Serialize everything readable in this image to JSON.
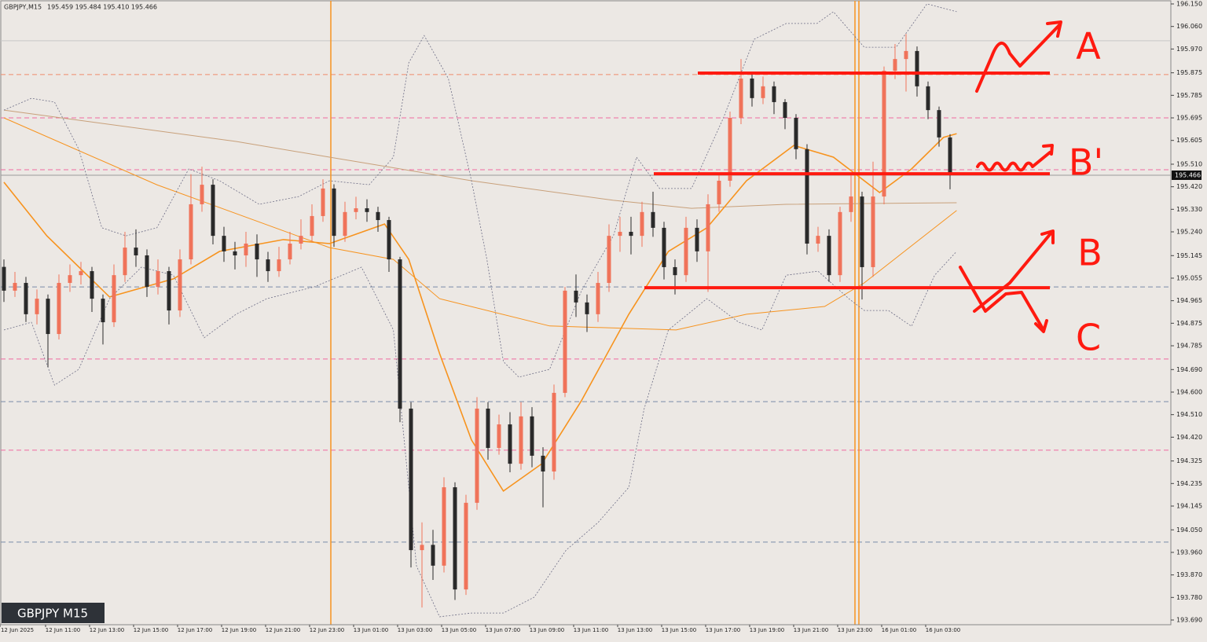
{
  "chart_data": {
    "type": "candlestick",
    "symbol": "GBPJPY,M15",
    "info": "195.459 195.484 195.410 195.466",
    "box_label": "GBPJPY M15",
    "current_price": 195.466,
    "bull_color": "#f0735a",
    "bear_color": "#2a2a2a",
    "x_labels": [
      "12 Jun 2025",
      "12 Jun 11:00",
      "12 Jun 13:00",
      "12 Jun 15:00",
      "12 Jun 17:00",
      "12 Jun 19:00",
      "12 Jun 21:00",
      "12 Jun 23:00",
      "13 Jun 01:00",
      "13 Jun 03:00",
      "13 Jun 05:00",
      "13 Jun 07:00",
      "13 Jun 09:00",
      "13 Jun 11:00",
      "13 Jun 13:00",
      "13 Jun 15:00",
      "13 Jun 17:00",
      "13 Jun 19:00",
      "13 Jun 21:00",
      "13 Jun 23:00",
      "16 Jun 01:00",
      "16 Jun 03:00"
    ],
    "ylim": [
      193.69,
      196.15
    ],
    "yticks": [
      {
        "value": 196.15,
        "label": "196.150"
      },
      {
        "value": 196.06,
        "label": "196.060"
      },
      {
        "value": 195.97,
        "label": "195.970"
      },
      195.875,
      195.785,
      195.695,
      195.605,
      {
        "value": 195.51,
        "label": "195.510"
      },
      {
        "value": 195.42,
        "label": "195.420"
      },
      {
        "value": 195.33,
        "label": "195.330"
      },
      {
        "value": 195.24,
        "label": "195.240"
      },
      195.145,
      195.055,
      194.965,
      194.875,
      194.785,
      {
        "value": 194.69,
        "label": "194.690"
      },
      {
        "value": 194.6,
        "label": "194.600"
      },
      {
        "value": 194.51,
        "label": "194.510"
      },
      {
        "value": 194.42,
        "label": "194.420"
      },
      194.325,
      194.235,
      194.145,
      {
        "value": 194.05,
        "label": "194.050"
      },
      {
        "value": 193.96,
        "label": "193.960"
      },
      {
        "value": 193.87,
        "label": "193.870"
      },
      {
        "value": 193.78,
        "label": "193.780"
      },
      {
        "value": 193.69,
        "label": "193.690"
      }
    ],
    "open": [
      195.1,
      195.005,
      195.036,
      194.911,
      194.973,
      194.832,
      195.036,
      195.067,
      195.083,
      194.973,
      194.879,
      195.067,
      195.177,
      195.146,
      195.02,
      195.083,
      194.926,
      195.13,
      195.35,
      195.428,
      195.224,
      195.162,
      195.146,
      195.193,
      195.13,
      195.083,
      195.13,
      195.193,
      195.224,
      195.303,
      195.413,
      195.224,
      195.319,
      195.334,
      195.319,
      195.287,
      195.13,
      194.534,
      193.969,
      193.99,
      193.907,
      194.22,
      193.812,
      194.158,
      194.534,
      194.377,
      194.471,
      194.314,
      194.503,
      194.346,
      194.283,
      194.597,
      195.005,
      194.958,
      194.911,
      195.036,
      195.224,
      195.24,
      195.224,
      195.319,
      195.256,
      195.099,
      195.067,
      195.256,
      195.162,
      195.35,
      195.444,
      195.695,
      195.852,
      195.774,
      195.821,
      195.758,
      195.695,
      195.57,
      195.193,
      195.224,
      195.067,
      195.319,
      195.381,
      195.099,
      195.381,
      195.883,
      195.93,
      195.962,
      195.821,
      195.726,
      195.617
    ],
    "high": [
      195.13,
      195.08,
      195.06,
      195.01,
      194.99,
      195.07,
      195.11,
      195.12,
      195.1,
      194.99,
      195.11,
      195.24,
      195.25,
      195.17,
      195.13,
      195.1,
      195.17,
      195.47,
      195.5,
      195.45,
      195.26,
      195.2,
      195.24,
      195.23,
      195.16,
      195.18,
      195.24,
      195.29,
      195.35,
      195.45,
      195.43,
      195.36,
      195.38,
      195.37,
      195.34,
      195.3,
      195.14,
      194.56,
      194.08,
      194.05,
      194.26,
      194.24,
      194.19,
      194.58,
      194.56,
      194.51,
      194.52,
      194.56,
      194.54,
      194.38,
      194.63,
      195.02,
      195.07,
      194.99,
      195.08,
      195.27,
      195.3,
      195.3,
      195.36,
      195.4,
      195.28,
      195.13,
      195.3,
      195.29,
      195.39,
      195.47,
      195.72,
      195.93,
      195.88,
      195.86,
      195.84,
      195.77,
      195.71,
      195.59,
      195.26,
      195.25,
      195.34,
      195.47,
      195.4,
      195.52,
      195.9,
      195.99,
      196.03,
      195.98,
      195.84,
      195.74,
      195.63
    ],
    "low": [
      194.96,
      194.98,
      194.88,
      194.87,
      194.7,
      194.81,
      195.0,
      195.03,
      194.92,
      194.79,
      194.86,
      195.04,
      195.1,
      194.98,
      194.99,
      194.87,
      194.9,
      195.11,
      195.32,
      195.19,
      195.12,
      195.09,
      195.1,
      195.06,
      195.04,
      195.06,
      195.11,
      195.17,
      195.2,
      195.28,
      195.18,
      195.2,
      195.29,
      195.28,
      195.24,
      195.08,
      194.48,
      193.9,
      193.74,
      193.85,
      193.88,
      193.77,
      193.79,
      194.13,
      194.33,
      194.35,
      194.28,
      194.29,
      194.3,
      194.14,
      194.25,
      194.58,
      194.9,
      194.84,
      194.88,
      195.0,
      195.16,
      195.15,
      195.18,
      195.22,
      195.05,
      194.99,
      195.04,
      195.12,
      195.0,
      195.32,
      195.42,
      195.67,
      195.74,
      195.75,
      195.71,
      195.65,
      195.53,
      195.15,
      195.16,
      195.04,
      195.04,
      195.28,
      194.97,
      195.06,
      195.35,
      195.85,
      195.8,
      195.78,
      195.69,
      195.58,
      195.41
    ],
    "close": [
      195.005,
      195.036,
      194.911,
      194.973,
      194.832,
      195.036,
      195.067,
      195.083,
      194.973,
      194.879,
      195.067,
      195.177,
      195.146,
      195.02,
      195.083,
      194.926,
      195.13,
      195.35,
      195.428,
      195.224,
      195.162,
      195.146,
      195.193,
      195.13,
      195.083,
      195.13,
      195.193,
      195.224,
      195.303,
      195.413,
      195.224,
      195.319,
      195.334,
      195.319,
      195.287,
      195.13,
      194.534,
      193.969,
      193.99,
      193.907,
      194.22,
      193.812,
      194.158,
      194.534,
      194.377,
      194.471,
      194.314,
      194.503,
      194.346,
      194.283,
      194.597,
      195.005,
      194.958,
      194.911,
      195.036,
      195.224,
      195.24,
      195.224,
      195.319,
      195.256,
      195.099,
      195.067,
      195.256,
      195.162,
      195.35,
      195.444,
      195.695,
      195.852,
      195.774,
      195.821,
      195.758,
      195.695,
      195.57,
      195.193,
      195.224,
      195.067,
      195.319,
      195.381,
      195.099,
      195.381,
      195.883,
      195.93,
      195.962,
      195.821,
      195.726,
      195.617,
      195.466
    ],
    "indicators": [
      {
        "color": "#c8a07a",
        "width": 1,
        "dash": "none",
        "x": [
          0,
          21.1,
          29.6,
          42.5,
          55.4,
          62.5,
          71.1,
          86.6
        ],
        "values": [
          195.726,
          195.601,
          195.538,
          195.444,
          195.366,
          195.334,
          195.35,
          195.356
        ]
      },
      {
        "color": "#f7931e",
        "width": 1,
        "dash": "none",
        "x": [
          0,
          13.9,
          29.6,
          35.4,
          39.6,
          49.6,
          61.1,
          67.5,
          74.6,
          78.2,
          86.6
        ],
        "values": [
          195.695,
          195.428,
          195.177,
          195.13,
          194.973,
          194.864,
          194.848,
          194.911,
          194.942,
          195.036,
          195.325
        ]
      },
      {
        "color": "#f7931e",
        "width": 1.6,
        "dash": "none",
        "x": [
          0,
          3.9,
          9.6,
          15.4,
          19.6,
          25.4,
          29.6,
          34.6,
          36.8,
          39.6,
          42.5,
          45.4,
          48.9,
          52.5,
          56.8,
          60.4,
          63.9,
          67.5,
          71.8,
          75.4,
          79.6,
          82.5,
          85.4,
          86.6
        ],
        "values": [
          195.438,
          195.224,
          194.98,
          195.052,
          195.162,
          195.209,
          195.193,
          195.271,
          195.13,
          194.754,
          194.409,
          194.205,
          194.314,
          194.566,
          194.911,
          195.162,
          195.256,
          195.444,
          195.585,
          195.538,
          195.397,
          195.491,
          195.617,
          195.632
        ]
      },
      {
        "color": "#6e6e86",
        "width": 0.8,
        "dash": "2 2",
        "x": [
          0,
          2.5,
          4.6,
          6.8,
          8.9,
          11.1,
          13.9,
          16.8,
          19.6,
          23.2,
          26.8,
          29.6,
          33.2,
          35.4,
          36.8,
          38.2,
          40.4,
          42.5,
          43.9,
          45.4,
          46.8,
          49.6,
          52.5,
          55.4,
          57.5,
          59.6,
          62.5,
          65.4,
          68.2,
          71.1,
          73.9,
          75.4,
          78.2,
          81.1,
          83.9,
          86.6
        ],
        "values": [
          195.726,
          195.773,
          195.758,
          195.57,
          195.256,
          195.224,
          195.256,
          195.491,
          195.444,
          195.35,
          195.381,
          195.444,
          195.428,
          195.538,
          195.915,
          196.024,
          195.852,
          195.444,
          195.13,
          194.722,
          194.66,
          194.691,
          195.005,
          195.224,
          195.538,
          195.413,
          195.413,
          195.695,
          196.009,
          196.072,
          196.072,
          196.119,
          195.977,
          195.977,
          196.15,
          196.119
        ]
      },
      {
        "color": "#6e6e86",
        "width": 0.8,
        "dash": "2 2",
        "x": [
          0,
          2.5,
          4.6,
          6.8,
          9.6,
          12.5,
          15.4,
          18.2,
          21.1,
          23.9,
          28.2,
          32.5,
          35.4,
          37.5,
          39.6,
          42.5,
          45.4,
          48.2,
          51.1,
          54.0,
          56.8,
          58.2,
          60.4,
          63.9,
          66.8,
          68.9,
          71.1,
          74.0,
          76.8,
          78.2,
          80.4,
          82.5,
          84.6,
          86.6
        ],
        "values": [
          194.848,
          194.879,
          194.628,
          194.691,
          194.973,
          195.099,
          195.067,
          194.817,
          194.911,
          194.973,
          195.02,
          195.099,
          194.848,
          193.906,
          193.703,
          193.718,
          193.718,
          193.781,
          193.969,
          194.079,
          194.22,
          194.534,
          194.848,
          194.973,
          194.879,
          194.848,
          195.067,
          195.083,
          194.973,
          194.926,
          194.926,
          194.863,
          195.067,
          195.162
        ]
      }
    ],
    "levels": [
      {
        "value": 196.003,
        "color": "#c8c8c8",
        "dash": "none"
      },
      {
        "value": 195.868,
        "color": "#f08a6a",
        "dash": "6 4"
      },
      {
        "value": 195.695,
        "color": "#f06aa0",
        "dash": "6 4"
      },
      {
        "value": 195.488,
        "color": "#f06aa0",
        "dash": "6 4"
      },
      {
        "value": 195.02,
        "color": "#7a8aa8",
        "dash": "6 4"
      },
      {
        "value": 194.732,
        "color": "#f06aa0",
        "dash": "6 4"
      },
      {
        "value": 194.562,
        "color": "#7a8aa8",
        "dash": "6 4"
      },
      {
        "value": 194.368,
        "color": "#f06aa0",
        "dash": "6 4"
      },
      {
        "value": 194.001,
        "color": "#7a8aa8",
        "dash": "6 4"
      }
    ],
    "drawn_levels": [
      195.874,
      195.472,
      195.017
    ],
    "annotations": [
      "A",
      "B'",
      "B",
      "C"
    ]
  }
}
